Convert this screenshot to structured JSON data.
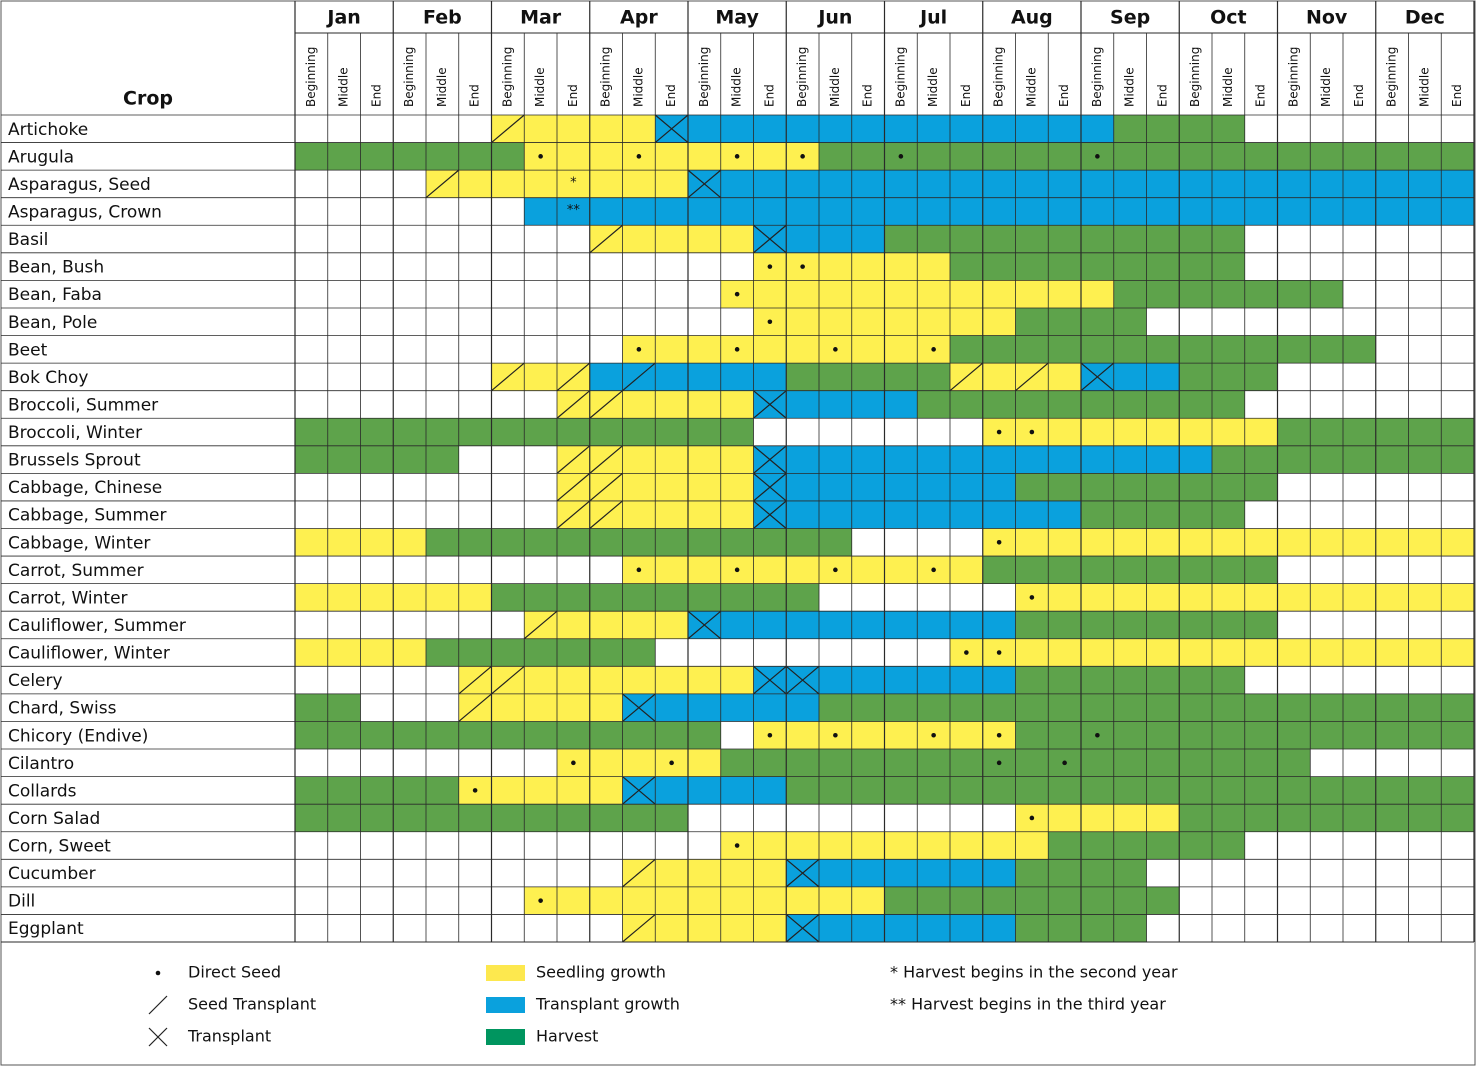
{
  "header": {
    "crop_label": "Crop",
    "months": [
      "Jan",
      "Feb",
      "Mar",
      "Apr",
      "May",
      "Jun",
      "Jul",
      "Aug",
      "Sep",
      "Oct",
      "Nov",
      "Dec"
    ],
    "periods": [
      "Beginning",
      "Middle",
      "End"
    ]
  },
  "colors": {
    "W": "#ffffff",
    "Y": "#fef050",
    "B": "#0aa1dd",
    "G": "#5ea34b"
  },
  "rows": [
    {
      "crop": "Artichoke",
      "fill": "WWW WWW YYY YYB BBB BBB BBB BBB BGG GGW WWW WWW",
      "marks": "--- --- /-- --x --- --- --- --- --- --- --- ---"
    },
    {
      "crop": "Arugula",
      "fill": "GGG GGG GYY YYY YYY YGG GGG GGG GGG GGG GGG GGG",
      "marks": "--- --- -.- -.- -.- .-- .-- --- .-- --- --- ---"
    },
    {
      "crop": "Asparagus, Seed",
      "fill": "WWW WYY YYY YYY BBB BBB BBB BBB BBB BBB BBB BBB",
      "marks": "--- -/- --n --- x-- --- --- --- --- --- --- ---",
      "note": "*"
    },
    {
      "crop": "Asparagus, Crown",
      "fill": "WWW WWW WBB BBB BBB BBB BBB BBB BBB BBB BBB BBB",
      "marks": "--- --- --n --- --- --- --- --- --- --- --- ---",
      "note": "**"
    },
    {
      "crop": "Basil",
      "fill": "WWW WWW WWW YYY YYB BBB GGG GGG GGG GGW WWW WWW",
      "marks": "--- --- --- /-- --x --- --- --- --- --- --- ---"
    },
    {
      "crop": "Bean, Bush",
      "fill": "WWW WWW WWW WWW WWY YYY YYG GGG GGG GGW WWW WWW",
      "marks": "--- --- --- --- --. .-- --- --- --- --- --- ---"
    },
    {
      "crop": "Bean, Faba",
      "fill": "WWW WWW WWW WWW WYY YYY YYY YYY YGG GGG GGW WWW",
      "marks": "--- --- --- --- -.- --- --- --- --- --- --- ---"
    },
    {
      "crop": "Bean, Pole",
      "fill": "WWW WWW WWW WWW WWY YYY YYY YGG GGW WWW WWW WWW",
      "marks": "--- --- --- --- --. --- --- --- --- --- --- ---"
    },
    {
      "crop": "Beet",
      "fill": "WWW WWW WWW WYY YYY YYY YYG GGG GGG GGG GGG WWW",
      "marks": "--- --- --- -.- -.- -.- -.- --- --- --- --- ---"
    },
    {
      "crop": "Bok Choy",
      "fill": "WWW WWW YYY BBB BBB GGG GGY YYY BBB GGG WWW WWW",
      "marks": "--- --- /-/ -/- --- --- --/ -/- x-- --- --- ---"
    },
    {
      "crop": "Broccoli, Summer",
      "fill": "WWW WWW WWY YYY YYB BBB BGG GGG GGG GGW WWW WWW",
      "marks": "--- --- --/ /-- --x --- --- --- --- --- --- ---"
    },
    {
      "crop": "Broccoli, Winter",
      "fill": "GGG GGG GGG GGG GGW WWW WWW YYY YYY YYY GGG GGG",
      "marks": "--- --- --- --- --- --- --- ..- --- --- --- ---"
    },
    {
      "crop": "Brussels Sprout",
      "fill": "GGG GGW WWY YYY YYB BBB BBB BBB BBB BGG GGG GGG",
      "marks": "--- --- --/ /-- --x --- --- --- --- --- --- ---"
    },
    {
      "crop": "Cabbage, Chinese",
      "fill": "WWW WWW WWY YYY YYB BBB BBB BGG GGG GGG WWW WWW",
      "marks": "--- --- --/ /-- --x --- --- --- --- --- --- ---"
    },
    {
      "crop": "Cabbage, Summer",
      "fill": "WWW WWW WWY YYY YYB BBB BBB BBB GGG GGW WWW WWW",
      "marks": "--- --- --/ /-- --x --- --- --- --- --- --- ---"
    },
    {
      "crop": "Cabbage, Winter",
      "fill": "YYY YGG GGG GGG GGG GGW WWW YYY YYY YYY YYY YYY",
      "marks": "--- --- --- --- --- --- --- .-- --- --- --- ---"
    },
    {
      "crop": "Carrot, Summer",
      "fill": "WWW WWW WWW WYY YYY YYY YYY GGG GGG GGG WWW WWW",
      "marks": "--- --- --- -.- -.- -.- -.- --- --- --- --- ---"
    },
    {
      "crop": "Carrot, Winter",
      "fill": "YYY YYY GGG GGG GGG GWW WWW WYY YYY YYY YYY YYY",
      "marks": "--- --- --- --- --- --- --- -.- --- --- --- ---"
    },
    {
      "crop": "Cauliflower, Summer",
      "fill": "WWW WWW WYY YYY BBB BBB BBB BGG GGG GGG WWW WWW",
      "marks": "--- --- -/- --- x-- --- --- --- --- --- --- ---"
    },
    {
      "crop": "Cauliflower, Winter",
      "fill": "YYY YGG GGG GGW WWW WWW WWY YYY YYY YYY YYY YYY",
      "marks": "--- --- --- --- --- --- --. .-- --- --- --- ---"
    },
    {
      "crop": "Celery",
      "fill": "WWW WWY YYY YYY YYB BBB BBB BGG GGG GGW WWW WWW",
      "marks": "--- --/ /-- --- --x x-- --- --- --- --- --- ---"
    },
    {
      "crop": "Chard, Swiss",
      "fill": "GGW WWY YYY YBB BBB BGG GGG GGG GGG GGG GGG GGG",
      "marks": "--- --/ --- -x- --- --- --- --- --- --- --- ---"
    },
    {
      "crop": "Chicory (Endive)",
      "fill": "GGG GGG GGG GGG GWY YYY YYY YGG GGG GGG GGG GGG",
      "marks": "--- --- --- --- --. -.- -.- .-- .-- --- --- ---"
    },
    {
      "crop": "Cilantro",
      "fill": "WWW WWW WWY YYY YGG GGG GGG GGG GGG GGG GWW WWW",
      "marks": "--- --- --. --. --- --- --- .-. --- --- --- ---"
    },
    {
      "crop": "Collards",
      "fill": "GGG GGY YYY YBB BBB GGG GGG GGG GGG GGG GGG GGG",
      "marks": "--- --. --- -x- --- --- --- --- --- --- --- ---"
    },
    {
      "crop": "Corn Salad",
      "fill": "GGG GGG GGG GGG WWW WWW WWW WYY YYY GGG GGG GGG",
      "marks": "--- --- --- --- --- --- --- -.- --- --- --- ---"
    },
    {
      "crop": "Corn, Sweet",
      "fill": "WWW WWW WWW WWW WYY YYY YYY YYG GGG GGW WWW WWW",
      "marks": "--- --- --- --- -.- --- --- --- --- --- --- ---"
    },
    {
      "crop": "Cucumber",
      "fill": "WWW WWW WWW WYY YYY BBB BBB BGG GGW WWW WWW WWW",
      "marks": "--- --- --- -/- --- x-- --- --- --- --- --- ---"
    },
    {
      "crop": "Dill",
      "fill": "WWW WWW WYY YYY YYY YYY GGG GGG GGG WWW WWW WWW",
      "marks": "--- --- -.- --- --- --- --- --- --- --- --- ---"
    },
    {
      "crop": "Eggplant",
      "fill": "WWW WWW WWW WYY YYY BBB BBB BGG GGW WWW WWW WWW",
      "marks": "--- --- --- -/- --- x-- --- --- --- --- --- ---"
    }
  ],
  "legend": {
    "symbols": [
      {
        "symbol": ".",
        "label": "Direct Seed"
      },
      {
        "symbol": "/",
        "label": "Seed Transplant"
      },
      {
        "symbol": "x",
        "label": "Transplant"
      }
    ],
    "fills": [
      {
        "color": "#fde84e",
        "label": "Seedling growth"
      },
      {
        "color": "#0aa1dd",
        "label": "Transplant growth"
      },
      {
        "color": "#00955f",
        "label": "Harvest"
      }
    ],
    "notes": [
      "* Harvest begins in the second year",
      "** Harvest begins in the third year"
    ]
  }
}
